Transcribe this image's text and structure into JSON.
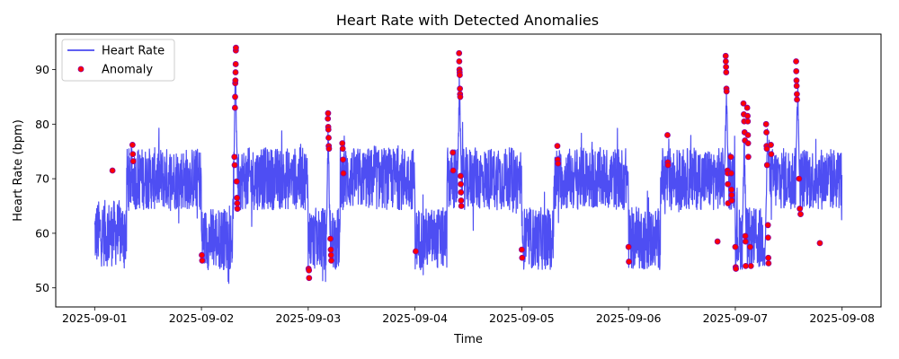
{
  "chart_data": {
    "type": "line",
    "title": "Heart Rate with Detected Anomalies",
    "xlabel": "Time",
    "ylabel": "Heart Rate (bpm)",
    "x_ticks": [
      "2025-09-01",
      "2025-09-02",
      "2025-09-03",
      "2025-09-04",
      "2025-09-05",
      "2025-09-06",
      "2025-09-07",
      "2025-09-08"
    ],
    "y_ticks": [
      50,
      60,
      70,
      80,
      90
    ],
    "xlim": [
      "2025-08-31T15:15",
      "2025-09-08T08:45"
    ],
    "ylim": [
      46.5,
      96.5
    ],
    "grid": false,
    "legend": {
      "position": "upper left",
      "entries": [
        {
          "label": "Heart Rate",
          "marker": "line",
          "color": "#4a4af0"
        },
        {
          "label": "Anomaly",
          "marker": "dot",
          "color": "#ff0000"
        }
      ]
    },
    "colors": {
      "line": "#4444f2",
      "anomaly_fill": "#ff0000",
      "anomaly_edge": "#8b00a0"
    },
    "series": [
      {
        "name": "Heart Rate",
        "kind": "line",
        "segments": [
          {
            "start": "2025-09-01T00:00",
            "end": "2025-09-01T07:12",
            "mean": 60,
            "noise": 3.2
          },
          {
            "start": "2025-09-01T07:12",
            "end": "2025-09-02T00:00",
            "mean": 70,
            "noise": 3
          },
          {
            "start": "2025-09-02T00:00",
            "end": "2025-09-02T07:12",
            "mean": 59,
            "noise": 3
          },
          {
            "start": "2025-09-02T07:12",
            "end": "2025-09-03T00:00",
            "mean": 70,
            "noise": 3
          },
          {
            "start": "2025-09-03T00:00",
            "end": "2025-09-03T07:12",
            "mean": 59,
            "noise": 3
          },
          {
            "start": "2025-09-03T07:12",
            "end": "2025-09-04T00:00",
            "mean": 70,
            "noise": 3
          },
          {
            "start": "2025-09-04T00:00",
            "end": "2025-09-04T07:12",
            "mean": 59,
            "noise": 3
          },
          {
            "start": "2025-09-04T07:12",
            "end": "2025-09-05T00:00",
            "mean": 70,
            "noise": 3
          },
          {
            "start": "2025-09-05T00:00",
            "end": "2025-09-05T07:12",
            "mean": 59,
            "noise": 3
          },
          {
            "start": "2025-09-05T07:12",
            "end": "2025-09-06T00:00",
            "mean": 70,
            "noise": 3
          },
          {
            "start": "2025-09-06T00:00",
            "end": "2025-09-06T07:12",
            "mean": 59,
            "noise": 3
          },
          {
            "start": "2025-09-06T07:12",
            "end": "2025-09-07T00:00",
            "mean": 70,
            "noise": 3
          },
          {
            "start": "2025-09-07T00:00",
            "end": "2025-09-07T07:12",
            "mean": 59,
            "noise": 3
          },
          {
            "start": "2025-09-07T07:12",
            "end": "2025-09-08T00:00",
            "mean": 70,
            "noise": 3
          }
        ],
        "spikes": [
          {
            "x": "2025-09-02T07:40",
            "peak": 94
          },
          {
            "x": "2025-09-03T04:30",
            "peak": 82
          },
          {
            "x": "2025-09-04T10:00",
            "peak": 93
          },
          {
            "x": "2025-09-06T22:00",
            "peak": 92.5
          },
          {
            "x": "2025-09-07T02:00",
            "peak": 84
          },
          {
            "x": "2025-09-07T07:12",
            "peak": 80
          },
          {
            "x": "2025-09-07T14:00",
            "peak": 92
          }
        ]
      },
      {
        "name": "Anomaly",
        "kind": "scatter",
        "points": [
          [
            "2025-09-01T04:00",
            71.5
          ],
          [
            "2025-09-01T08:30",
            76.2
          ],
          [
            "2025-09-01T08:35",
            74.5
          ],
          [
            "2025-09-01T08:40",
            73.2
          ],
          [
            "2025-09-02T00:05",
            56
          ],
          [
            "2025-09-02T00:10",
            55
          ],
          [
            "2025-09-02T07:25",
            74
          ],
          [
            "2025-09-02T07:28",
            72.5
          ],
          [
            "2025-09-02T07:32",
            83
          ],
          [
            "2025-09-02T07:34",
            85
          ],
          [
            "2025-09-02T07:36",
            87.5
          ],
          [
            "2025-09-02T07:38",
            88
          ],
          [
            "2025-09-02T07:40",
            89.5
          ],
          [
            "2025-09-02T07:42",
            91
          ],
          [
            "2025-09-02T07:44",
            93.5
          ],
          [
            "2025-09-02T07:45",
            94
          ],
          [
            "2025-09-02T07:55",
            69.5
          ],
          [
            "2025-09-02T08:00",
            66.5
          ],
          [
            "2025-09-02T08:03",
            65.5
          ],
          [
            "2025-09-02T08:05",
            64.5
          ],
          [
            "2025-09-03T00:05",
            53.5
          ],
          [
            "2025-09-03T00:10",
            53.2
          ],
          [
            "2025-09-03T00:12",
            51.8
          ],
          [
            "2025-09-03T04:25",
            81
          ],
          [
            "2025-09-03T04:28",
            82
          ],
          [
            "2025-09-03T04:30",
            79.5
          ],
          [
            "2025-09-03T04:32",
            79
          ],
          [
            "2025-09-03T04:35",
            77.5
          ],
          [
            "2025-09-03T04:37",
            76
          ],
          [
            "2025-09-03T04:40",
            75.5
          ],
          [
            "2025-09-03T05:00",
            59
          ],
          [
            "2025-09-03T05:05",
            57
          ],
          [
            "2025-09-03T05:08",
            56
          ],
          [
            "2025-09-03T05:12",
            55
          ],
          [
            "2025-09-03T07:40",
            76.5
          ],
          [
            "2025-09-03T07:45",
            75.5
          ],
          [
            "2025-09-03T07:50",
            73.5
          ],
          [
            "2025-09-03T07:55",
            71
          ],
          [
            "2025-09-04T00:10",
            56.7
          ],
          [
            "2025-09-04T08:30",
            74.8
          ],
          [
            "2025-09-04T08:35",
            71.5
          ],
          [
            "2025-09-04T09:55",
            93
          ],
          [
            "2025-09-04T09:57",
            91.5
          ],
          [
            "2025-09-04T10:00",
            90
          ],
          [
            "2025-09-04T10:02",
            89.5
          ],
          [
            "2025-09-04T10:04",
            89
          ],
          [
            "2025-09-04T10:06",
            86.5
          ],
          [
            "2025-09-04T10:08",
            85.5
          ],
          [
            "2025-09-04T10:10",
            85
          ],
          [
            "2025-09-04T10:15",
            70.5
          ],
          [
            "2025-09-04T10:18",
            69
          ],
          [
            "2025-09-04T10:20",
            67.5
          ],
          [
            "2025-09-04T10:22",
            66
          ],
          [
            "2025-09-04T10:25",
            65
          ],
          [
            "2025-09-05T00:00",
            57
          ],
          [
            "2025-09-05T00:05",
            55.5
          ],
          [
            "2025-09-05T08:00",
            76
          ],
          [
            "2025-09-05T08:05",
            73.5
          ],
          [
            "2025-09-05T08:10",
            72.8
          ],
          [
            "2025-09-06T00:00",
            57.5
          ],
          [
            "2025-09-06T00:05",
            54.8
          ],
          [
            "2025-09-06T08:45",
            78
          ],
          [
            "2025-09-06T08:50",
            73
          ],
          [
            "2025-09-06T08:52",
            72.5
          ],
          [
            "2025-09-06T20:00",
            58.5
          ],
          [
            "2025-09-06T21:50",
            92.5
          ],
          [
            "2025-09-06T21:52",
            91.5
          ],
          [
            "2025-09-06T21:55",
            90.5
          ],
          [
            "2025-09-06T21:57",
            89.5
          ],
          [
            "2025-09-06T22:00",
            86.5
          ],
          [
            "2025-09-06T22:02",
            86
          ],
          [
            "2025-09-06T22:15",
            71.5
          ],
          [
            "2025-09-06T22:18",
            71
          ],
          [
            "2025-09-06T22:20",
            69
          ],
          [
            "2025-09-06T22:22",
            65.5
          ],
          [
            "2025-09-06T23:00",
            74
          ],
          [
            "2025-09-06T23:05",
            71
          ],
          [
            "2025-09-06T23:08",
            68
          ],
          [
            "2025-09-06T23:10",
            67
          ],
          [
            "2025-09-06T23:12",
            66
          ],
          [
            "2025-09-07T00:00",
            57.5
          ],
          [
            "2025-09-07T00:05",
            53.8
          ],
          [
            "2025-09-07T00:08",
            53.5
          ],
          [
            "2025-09-07T01:50",
            83.8
          ],
          [
            "2025-09-07T01:55",
            81.8
          ],
          [
            "2025-09-07T02:00",
            80.5
          ],
          [
            "2025-09-07T02:05",
            78.5
          ],
          [
            "2025-09-07T02:10",
            77
          ],
          [
            "2025-09-07T02:15",
            59.5
          ],
          [
            "2025-09-07T02:18",
            58.5
          ],
          [
            "2025-09-07T02:20",
            54
          ],
          [
            "2025-09-07T02:40",
            83
          ],
          [
            "2025-09-07T02:45",
            81.5
          ],
          [
            "2025-09-07T02:48",
            80.5
          ],
          [
            "2025-09-07T02:50",
            78
          ],
          [
            "2025-09-07T02:52",
            76.5
          ],
          [
            "2025-09-07T02:55",
            74
          ],
          [
            "2025-09-07T03:20",
            57.5
          ],
          [
            "2025-09-07T03:30",
            54
          ],
          [
            "2025-09-07T06:55",
            80
          ],
          [
            "2025-09-07T07:00",
            78.5
          ],
          [
            "2025-09-07T07:02",
            76
          ],
          [
            "2025-09-07T07:05",
            75.5
          ],
          [
            "2025-09-07T07:08",
            72.5
          ],
          [
            "2025-09-07T07:20",
            61.5
          ],
          [
            "2025-09-07T07:22",
            59.2
          ],
          [
            "2025-09-07T07:25",
            55.5
          ],
          [
            "2025-09-07T07:28",
            54.5
          ],
          [
            "2025-09-07T08:00",
            76.2
          ],
          [
            "2025-09-07T08:05",
            74.5
          ],
          [
            "2025-09-07T13:40",
            91.5
          ],
          [
            "2025-09-07T13:42",
            89.7
          ],
          [
            "2025-09-07T13:45",
            88
          ],
          [
            "2025-09-07T13:47",
            87
          ],
          [
            "2025-09-07T13:50",
            85.5
          ],
          [
            "2025-09-07T13:52",
            84.5
          ],
          [
            "2025-09-07T14:20",
            70
          ],
          [
            "2025-09-07T14:30",
            64.5
          ],
          [
            "2025-09-07T14:40",
            63.5
          ],
          [
            "2025-09-07T19:00",
            58.2
          ]
        ]
      }
    ]
  }
}
